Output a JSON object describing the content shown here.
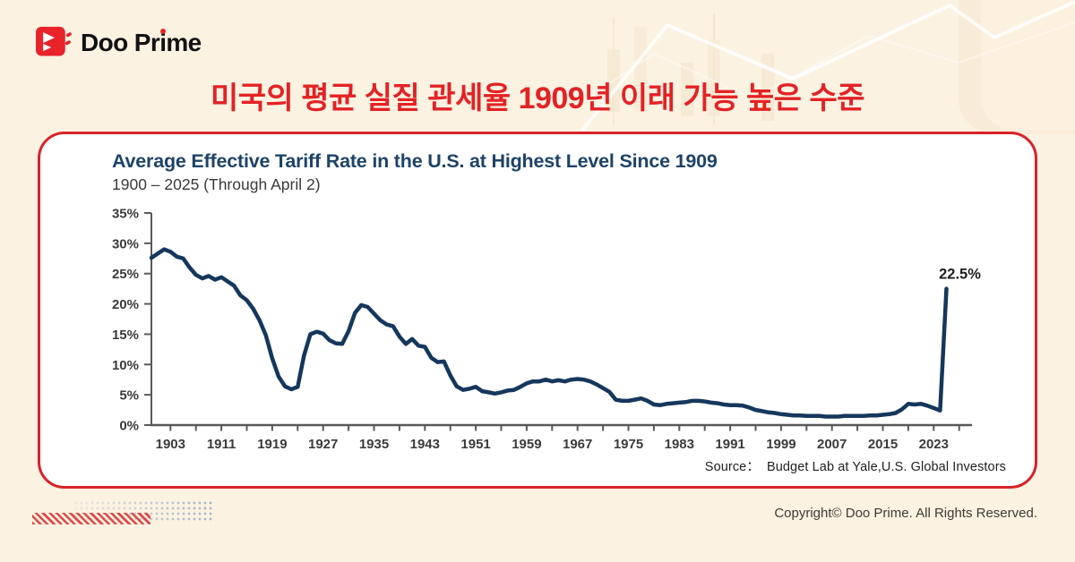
{
  "brand": {
    "name": "Doo Prime",
    "word_pre": "Doo Pr",
    "word_i": "i",
    "word_post": "me"
  },
  "headline": "미국의 평균 실질 관세율 1909년 이래 가능 높은 수준",
  "card": {
    "source_label": "Source：",
    "source_value": "Budget Lab at Yale,U.S. Global Investors"
  },
  "footer": {
    "copyright": "Copyright© Doo Prime. All Rights Reserved."
  },
  "colors": {
    "page_bg": "#FBF2E2",
    "headline_red": "#E32225",
    "card_border_red": "#D8222A",
    "title_navy": "#1E4368",
    "line_navy": "#16375C",
    "axis_gray": "#58595B",
    "tick_text": "#3B3B3B",
    "logo_red": "#E8232A"
  },
  "chart_data": {
    "type": "line",
    "title": "Average Effective Tariff Rate in the U.S. at Highest Level Since 1909",
    "subtitle": "1900 – 2025 (Through April 2)",
    "xlabel": "",
    "ylabel": "",
    "xlim": [
      1900,
      2028
    ],
    "ylim": [
      0,
      35
    ],
    "grid": false,
    "y_tick_step": 5,
    "y_tick_suffix": "%",
    "x_tick_minor_step": 4,
    "x_tick_labels": [
      1903,
      1911,
      1919,
      1927,
      1935,
      1943,
      1951,
      1959,
      1967,
      1975,
      1983,
      1991,
      1999,
      2007,
      2015,
      2023
    ],
    "annotation": {
      "x": 2025,
      "y": 22.5,
      "label": "22.5%"
    },
    "line_color": "#16375C",
    "axis_color": "#58595B",
    "x": [
      1900,
      1901,
      1902,
      1903,
      1904,
      1905,
      1906,
      1907,
      1908,
      1909,
      1910,
      1911,
      1912,
      1913,
      1914,
      1915,
      1916,
      1917,
      1918,
      1919,
      1920,
      1921,
      1922,
      1923,
      1924,
      1925,
      1926,
      1927,
      1928,
      1929,
      1930,
      1931,
      1932,
      1933,
      1934,
      1935,
      1936,
      1937,
      1938,
      1939,
      1940,
      1941,
      1942,
      1943,
      1944,
      1945,
      1946,
      1947,
      1948,
      1949,
      1950,
      1951,
      1952,
      1953,
      1954,
      1955,
      1956,
      1957,
      1958,
      1959,
      1960,
      1961,
      1962,
      1963,
      1964,
      1965,
      1966,
      1967,
      1968,
      1969,
      1970,
      1971,
      1972,
      1973,
      1974,
      1975,
      1976,
      1977,
      1978,
      1979,
      1980,
      1981,
      1982,
      1983,
      1984,
      1985,
      1986,
      1987,
      1988,
      1989,
      1990,
      1991,
      1992,
      1993,
      1994,
      1995,
      1996,
      1997,
      1998,
      1999,
      2000,
      2001,
      2002,
      2003,
      2004,
      2005,
      2006,
      2007,
      2008,
      2009,
      2010,
      2011,
      2012,
      2013,
      2014,
      2015,
      2016,
      2017,
      2018,
      2019,
      2020,
      2021,
      2022,
      2023,
      2024,
      2025
    ],
    "values": [
      27.6,
      28.3,
      29.0,
      28.6,
      27.8,
      27.5,
      26.0,
      24.8,
      24.2,
      24.6,
      24.0,
      24.4,
      23.7,
      23.0,
      21.4,
      20.6,
      19.2,
      17.3,
      14.8,
      11.0,
      8.0,
      6.4,
      5.9,
      6.3,
      11.5,
      15.0,
      15.4,
      15.1,
      14.0,
      13.5,
      13.4,
      15.5,
      18.5,
      19.8,
      19.5,
      18.4,
      17.3,
      16.6,
      16.3,
      14.6,
      13.4,
      14.2,
      13.1,
      12.9,
      11.1,
      10.4,
      10.5,
      8.2,
      6.4,
      5.8,
      6.0,
      6.3,
      5.6,
      5.4,
      5.2,
      5.4,
      5.7,
      5.8,
      6.3,
      6.9,
      7.2,
      7.2,
      7.5,
      7.2,
      7.4,
      7.2,
      7.5,
      7.6,
      7.5,
      7.2,
      6.7,
      6.1,
      5.5,
      4.2,
      4.0,
      4.0,
      4.2,
      4.4,
      4.0,
      3.4,
      3.3,
      3.5,
      3.6,
      3.7,
      3.8,
      4.0,
      4.0,
      3.9,
      3.7,
      3.6,
      3.4,
      3.3,
      3.3,
      3.2,
      2.9,
      2.5,
      2.3,
      2.1,
      2.0,
      1.8,
      1.7,
      1.6,
      1.6,
      1.5,
      1.5,
      1.5,
      1.4,
      1.4,
      1.4,
      1.5,
      1.5,
      1.5,
      1.5,
      1.6,
      1.6,
      1.7,
      1.8,
      2.0,
      2.6,
      3.5,
      3.4,
      3.5,
      3.2,
      2.8,
      2.4,
      22.5
    ]
  }
}
